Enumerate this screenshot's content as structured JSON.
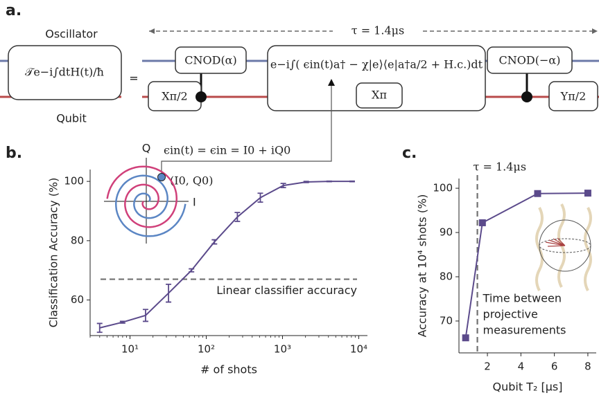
{
  "panel_labels": [
    "a.",
    "b.",
    "c."
  ],
  "circuit": {
    "oscillator": "Oscillator",
    "qubit": "Qubit",
    "evolution": "𝒯e−i∫dtH(t)/ħ",
    "equals": "=",
    "duration": "τ = 1.4μs",
    "cnod_plus": "CNOD(α)",
    "x_half": "Xπ/2",
    "drive": "e−i∫( ϵin(t)a† − χ|e⟩⟨e|a†a/2 + H.c.)dt",
    "x_pi": "Xπ",
    "cnod_minus": "CNOD(−α)",
    "y_half": "Yπ/2",
    "drive_signal": "ϵin(t) = ϵin = I0 + iQ0"
  },
  "inset": {
    "q_axis": "Q",
    "i_axis": "I",
    "point": "(I0, Q0)"
  },
  "chart_data": [
    {
      "type": "line",
      "xlabel": "# of shots",
      "ylabel": "Classification Accuracy (%)",
      "x": [
        4,
        8,
        16,
        32,
        64,
        128,
        256,
        512,
        1024,
        2048,
        4096,
        8192
      ],
      "series": [
        {
          "color": "#5b4a8b",
          "values": [
            50.6,
            52.5,
            54.8,
            62.3,
            70,
            79.6,
            88,
            94.5,
            98.6,
            99.8,
            100,
            100
          ],
          "errors": [
            1.5,
            0.3,
            2,
            3,
            0.5,
            0.7,
            1.5,
            1.5,
            0.7,
            0.2,
            0.1,
            0.1
          ]
        }
      ],
      "xscale": "log",
      "xlim": [
        3,
        13000
      ],
      "xticks": [
        {
          "value": 10,
          "label": "10¹"
        },
        {
          "value": 100,
          "label": "10²"
        },
        {
          "value": 1000,
          "label": "10³"
        },
        {
          "value": 10000,
          "label": "10⁴"
        }
      ],
      "ylim": [
        48,
        104
      ],
      "yticks": [
        60,
        80,
        100
      ],
      "hline": {
        "value": 67,
        "label": "Linear classifier accuracy",
        "color": "#707070"
      }
    },
    {
      "type": "line",
      "xlabel": "Qubit T₂ [μs]",
      "ylabel": "Accuracy at 10⁴ shots (%)",
      "x": [
        0.7,
        1.7,
        5,
        8
      ],
      "series": [
        {
          "color": "#5b4a8b",
          "values": [
            66.2,
            92.2,
            98.8,
            98.9
          ]
        }
      ],
      "xlim": [
        0.3,
        8.5
      ],
      "xticks": [
        2,
        4,
        6,
        8
      ],
      "ylim": [
        62.8,
        102.2
      ],
      "yticks": [
        70,
        80,
        90,
        100
      ],
      "vline": {
        "value": 1.4,
        "label": "τ = 1.4μs",
        "color": "#707070"
      },
      "annotation": [
        "Time between",
        "projective",
        "measurements"
      ]
    }
  ]
}
